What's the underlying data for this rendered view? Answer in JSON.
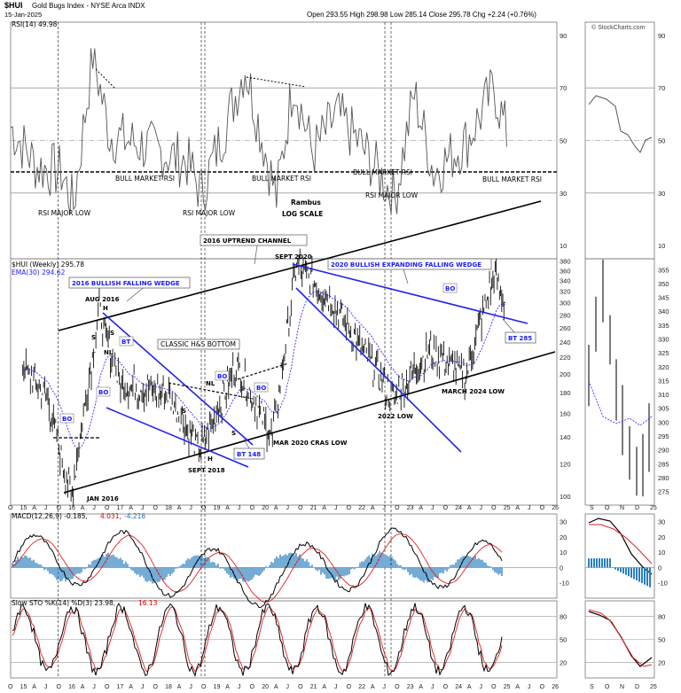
{
  "header": {
    "symbol": "$HUI",
    "name": "Gold Bugs Index - NYSE Arca INDX",
    "date": "15-Jan-2025",
    "ohlc": "Open 293.55  High 298.98  Low 285.14  Close 295.78  Chg +2.24 (+0.76%)",
    "credit": "© StockCharts.com"
  },
  "rsi": {
    "legend": "RSI(14) 49.98",
    "ticks": [
      "90",
      "70",
      "50",
      "30",
      "10"
    ],
    "labels": [
      "BULL MARKET RSI",
      "BULL MARKET RSI",
      "BULL MARKET RSI",
      "BULL MARKET RSI"
    ],
    "major_low": [
      "RSI MAJOR LOW",
      "RSI MAJOR LOW",
      "RSI MAJOR LOW"
    ],
    "rambus": "Rambus",
    "scale": "LOG SCALE"
  },
  "price": {
    "legend": "$HUI (Weekly) 295.78",
    "ema": "EMA(30) 294.62",
    "ticks": [
      "380",
      "360",
      "340",
      "320",
      "300",
      "280",
      "260",
      "240",
      "220",
      "200",
      "180",
      "160",
      "140",
      "120",
      "100"
    ],
    "right_ticks": [
      "355",
      "350",
      "345",
      "340",
      "335",
      "330",
      "325",
      "320",
      "315",
      "310",
      "305",
      "300",
      "295",
      "290",
      "285",
      "280",
      "275"
    ],
    "annotations": {
      "channel": "2016 UPTREND CHANNEL",
      "wedge2016": "2016 BULLISH FALLING WEDGE",
      "wedge2020": "2020 BULLISH EXPANDING FALLING WEDGE",
      "aug2016": "AUG 2016",
      "sept2020": "SEPT 2020",
      "hs": "CLASSIC H&S BOTTOM",
      "jan2016": "JAN 2016",
      "sept2018": "SEPT 2018",
      "mar2020": "MAR 2020 CRAS LOW",
      "y2022": "2022 LOW",
      "mar2024": "MARCH 2024 LOW",
      "bt148": "BT 148",
      "bt285": "BT 285",
      "bo": "BO",
      "bt": "BT",
      "h": "H",
      "s": "S",
      "nl": "NL"
    }
  },
  "macd": {
    "legend_a": "MACD(12,26,9) -0.185,",
    "legend_b": "4.031,",
    "legend_c": "-4.216",
    "ticks": [
      "30",
      "20",
      "10",
      "0",
      "-10"
    ]
  },
  "sto": {
    "legend_a": "Slow STO %K(14) %D(3) 23.98,",
    "legend_b": "16.13",
    "ticks": [
      "80",
      "50",
      "20"
    ]
  },
  "xaxis": {
    "labels": [
      "O",
      "15",
      "A",
      "J",
      "O",
      "16",
      "A",
      "J",
      "O",
      "17",
      "A",
      "J",
      "O",
      "18",
      "A",
      "J",
      "O",
      "19",
      "A",
      "J",
      "O",
      "20",
      "A",
      "J",
      "O",
      "21",
      "A",
      "J",
      "O",
      "22",
      "A",
      "J",
      "O",
      "23",
      "A",
      "J",
      "O",
      "24",
      "A",
      "J",
      "O",
      "25",
      "A",
      "J",
      "O",
      "26"
    ],
    "right_labels": [
      "S",
      "O",
      "N",
      "D",
      "25"
    ]
  },
  "chart_data": {
    "type": "line",
    "title": "$HUI Gold Bugs Index - NYSE Arca INDX",
    "x": [
      "2015-01",
      "2015-07",
      "2016-01",
      "2016-08",
      "2017-01",
      "2018-01",
      "2018-09",
      "2019-06",
      "2020-03",
      "2020-09",
      "2021-06",
      "2022-09",
      "2023-06",
      "2024-03",
      "2024-10",
      "2025-01"
    ],
    "series": [
      {
        "name": "$HUI (Weekly)",
        "values": [
          210,
          175,
          100,
          286,
          190,
          180,
          130,
          210,
          140,
          375,
          300,
          175,
          230,
          200,
          350,
          295.78
        ]
      }
    ],
    "ylim": [
      100,
      380
    ]
  }
}
